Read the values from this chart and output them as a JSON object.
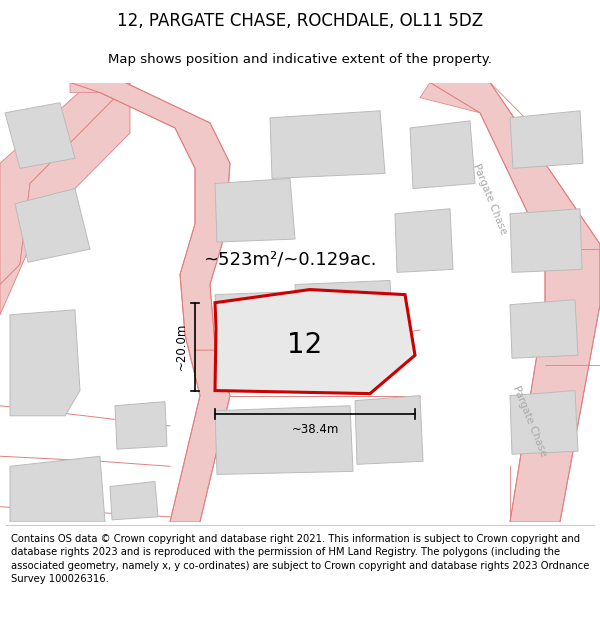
{
  "title": "12, PARGATE CHASE, ROCHDALE, OL11 5DZ",
  "subtitle": "Map shows position and indicative extent of the property.",
  "footer": "Contains OS data © Crown copyright and database right 2021. This information is subject to Crown copyright and database rights 2023 and is reproduced with the permission of HM Land Registry. The polygons (including the associated geometry, namely x, y co-ordinates) are subject to Crown copyright and database rights 2023 Ordnance Survey 100026316.",
  "area_label": "~523m²/~0.129ac.",
  "number_label": "12",
  "width_label": "~38.4m",
  "height_label": "~20.0m",
  "road_color": "#f0c8c8",
  "road_edge_color": "#e08080",
  "building_color": "#d8d8d8",
  "building_outline": "#bbbbbb",
  "plot_outline_color": "#cc0000",
  "plot_fill_color": "#e8e8e8",
  "street_label_color": "#aaaaaa",
  "title_fontsize": 12,
  "subtitle_fontsize": 9.5,
  "footer_fontsize": 7.2,
  "area_fontsize": 13,
  "number_fontsize": 20
}
